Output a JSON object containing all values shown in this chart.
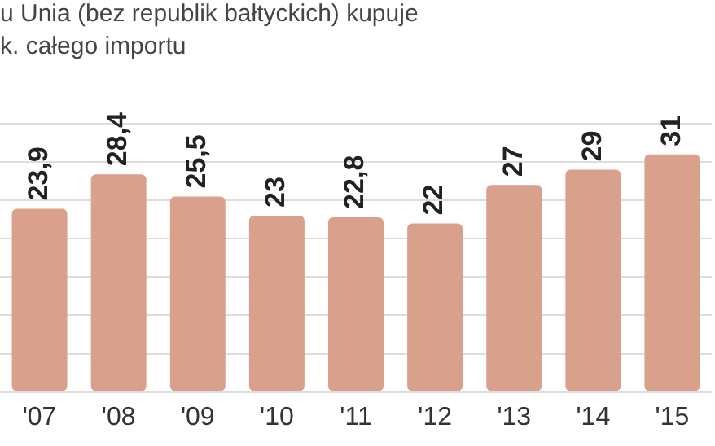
{
  "chart_data": {
    "type": "bar",
    "title": "u Unia (bez republik bałtyckich) kupuje",
    "subtitle": "k. całego importu",
    "categories": [
      "'07",
      "'08",
      "'09",
      "'10",
      "'11",
      "'12",
      "'13",
      "'14",
      "'15"
    ],
    "values": [
      23.9,
      28.4,
      25.5,
      23,
      22.8,
      22,
      27,
      29,
      31
    ],
    "color": "#d9a08b",
    "value_labels": [
      "23,9",
      "28,4",
      "25,5",
      "23",
      "22,8",
      "22",
      "27",
      "29",
      "31"
    ],
    "grid": "y",
    "tick_labels": "x",
    "legend": false
  }
}
